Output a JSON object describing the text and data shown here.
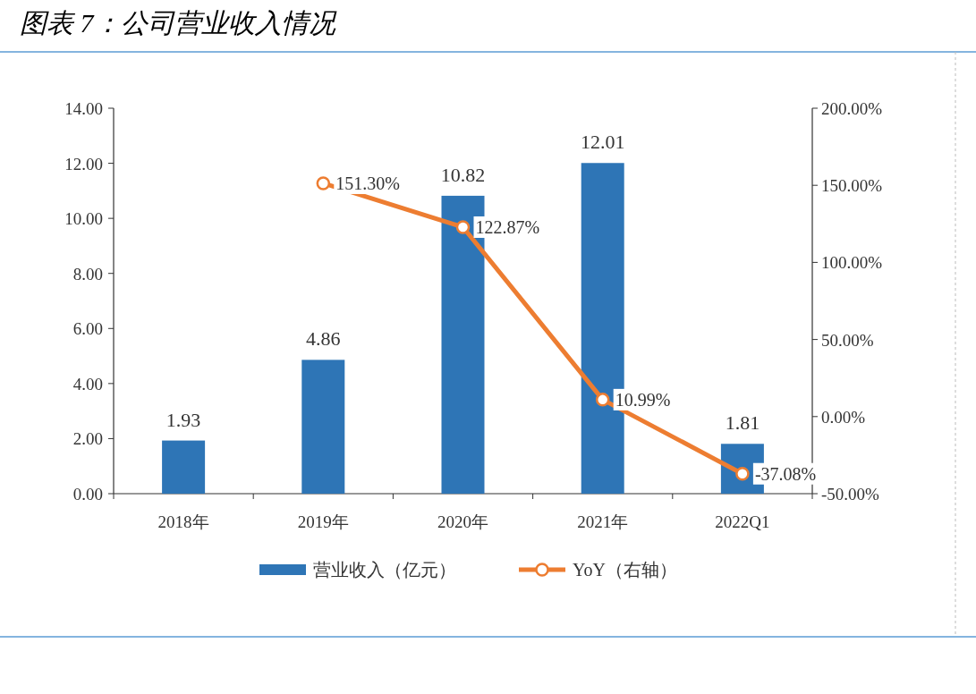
{
  "chart_data": {
    "type": "bar",
    "title": "图表 7：公司营业收入情况",
    "categories": [
      "2018年",
      "2019年",
      "2020年",
      "2021年",
      "2022Q1"
    ],
    "series": [
      {
        "name": "营业收入（亿元）",
        "color": "#2e75b6",
        "values": [
          1.93,
          4.86,
          10.82,
          12.01,
          1.81
        ],
        "value_labels": [
          "1.93",
          "4.86",
          "10.82",
          "12.01",
          "1.81"
        ]
      },
      {
        "name": "YoY（右轴）",
        "type": "line",
        "axis": "y2",
        "color": "#ed7d31",
        "marker": "circle",
        "values": [
          null,
          151.3,
          122.87,
          10.99,
          -37.08
        ],
        "value_labels": [
          null,
          "151.30%",
          "122.87%",
          "10.99%",
          "-37.08%"
        ]
      }
    ],
    "ylim": [
      0,
      14
    ],
    "yticks": [
      {
        "value": 0,
        "label": "0.00"
      },
      {
        "value": 2,
        "label": "2.00"
      },
      {
        "value": 4,
        "label": "4.00"
      },
      {
        "value": 6,
        "label": "6.00"
      },
      {
        "value": 8,
        "label": "8.00"
      },
      {
        "value": 10,
        "label": "10.00"
      },
      {
        "value": 12,
        "label": "12.00"
      },
      {
        "value": 14,
        "label": "14.00"
      }
    ],
    "y2lim": [
      -50,
      200
    ],
    "y2ticks": [
      {
        "value": -50,
        "label": "-50.00%"
      },
      {
        "value": 0,
        "label": "0.00%"
      },
      {
        "value": 50,
        "label": "50.00%"
      },
      {
        "value": 100,
        "label": "100.00%"
      },
      {
        "value": 150,
        "label": "150.00%"
      },
      {
        "value": 200,
        "label": "200.00%"
      }
    ],
    "legend": "bottom"
  }
}
